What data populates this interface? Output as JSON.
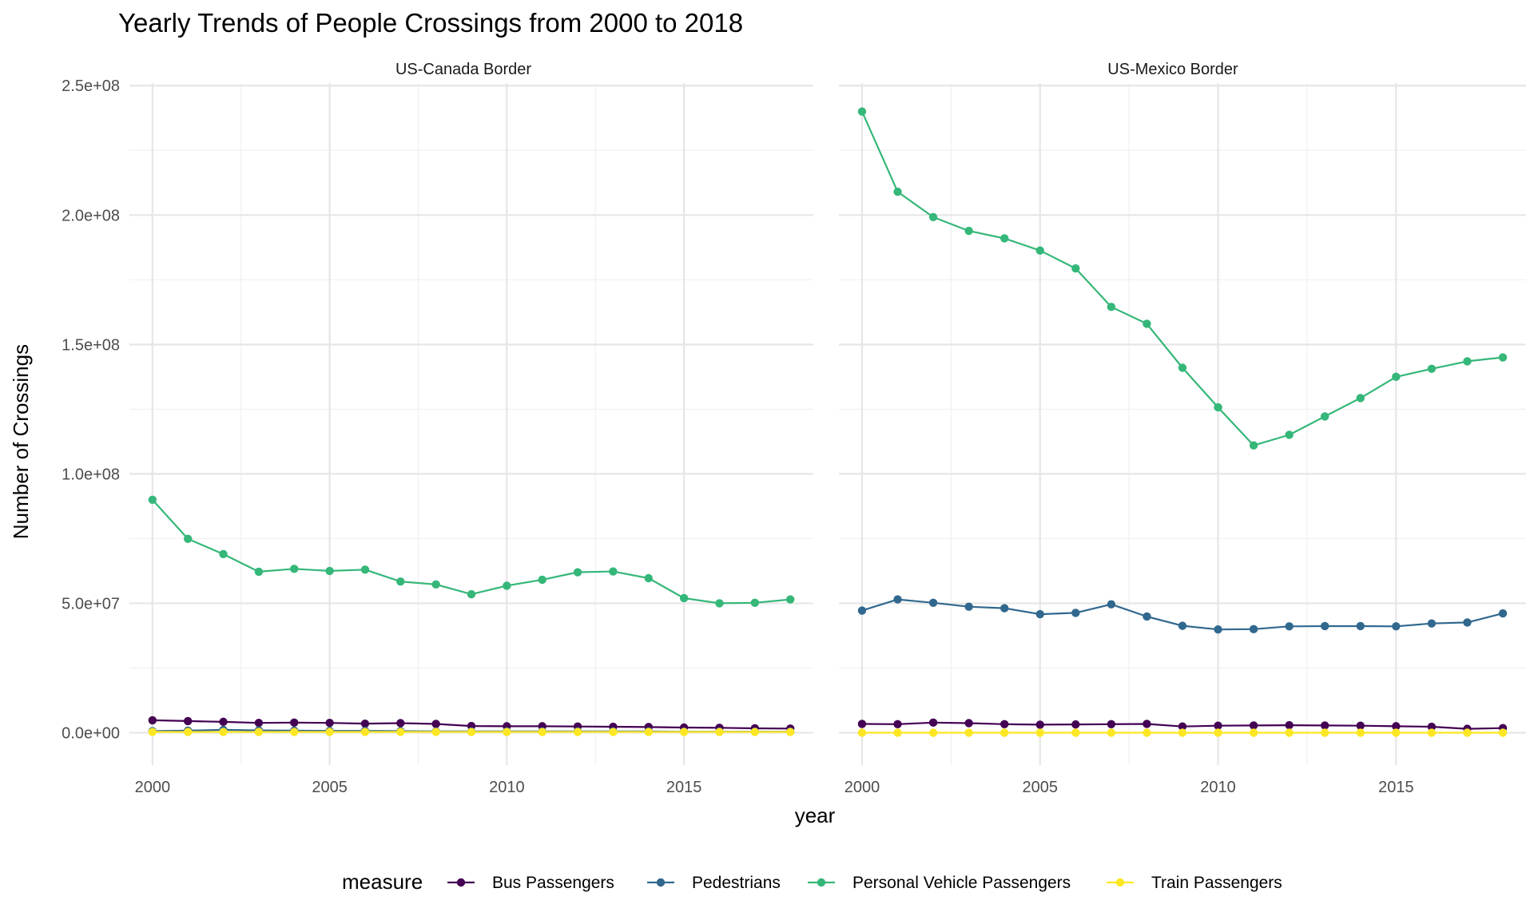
{
  "chart_data": {
    "type": "line",
    "title": "Yearly Trends of People Crossings from 2000 to 2018",
    "xlabel": "year",
    "ylabel": "Number of Crossings",
    "xlim": [
      1999.35,
      2018.65
    ],
    "ylim": [
      -12500000,
      251000000
    ],
    "x_ticks": [
      2000,
      2005,
      2010,
      2015
    ],
    "x_tick_labels": [
      "2000",
      "2005",
      "2010",
      "2015"
    ],
    "y_ticks": [
      0,
      50000000,
      100000000,
      150000000,
      200000000,
      250000000
    ],
    "y_tick_labels": [
      "0.0e+00",
      "5.0e+07",
      "1.0e+08",
      "1.5e+08",
      "2.0e+08",
      "2.5e+08"
    ],
    "grid": true,
    "legend_position": "bottom",
    "legend_title": "measure",
    "facets": [
      "US-Canada Border",
      "US-Mexico Border"
    ],
    "x": [
      2000,
      2001,
      2002,
      2003,
      2004,
      2005,
      2006,
      2007,
      2008,
      2009,
      2010,
      2011,
      2012,
      2013,
      2014,
      2015,
      2016,
      2017,
      2018
    ],
    "series": [
      {
        "name": "Bus Passengers",
        "color": "#440154",
        "values": {
          "US-Canada Border": [
            4800000,
            4500000,
            4200000,
            3800000,
            3900000,
            3800000,
            3500000,
            3700000,
            3400000,
            2600000,
            2500000,
            2500000,
            2400000,
            2300000,
            2200000,
            2000000,
            1900000,
            1700000,
            1600000
          ],
          "US-Mexico Border": [
            3400000,
            3300000,
            3900000,
            3700000,
            3300000,
            3100000,
            3200000,
            3300000,
            3400000,
            2400000,
            2700000,
            2800000,
            2900000,
            2800000,
            2700000,
            2500000,
            2300000,
            1500000,
            1800000
          ]
        }
      },
      {
        "name": "Pedestrians",
        "color": "#31688e",
        "values": {
          "US-Canada Border": [
            600000,
            800000,
            1100000,
            900000,
            800000,
            700000,
            700000,
            600000,
            500000,
            500000,
            500000,
            500000,
            500000,
            500000,
            500000,
            400000,
            400000,
            400000,
            400000
          ],
          "US-Mexico Border": [
            47200000,
            51500000,
            50200000,
            48700000,
            48100000,
            45800000,
            46300000,
            49600000,
            44900000,
            41300000,
            39900000,
            40000000,
            41100000,
            41200000,
            41200000,
            41100000,
            42200000,
            42600000,
            46100000
          ]
        }
      },
      {
        "name": "Personal Vehicle Passengers",
        "color": "#35b779",
        "values": {
          "US-Canada Border": [
            90000000,
            74900000,
            69000000,
            62200000,
            63300000,
            62500000,
            63000000,
            58400000,
            57300000,
            53500000,
            56800000,
            59100000,
            62000000,
            62300000,
            59700000,
            52000000,
            50000000,
            50200000,
            51500000
          ],
          "US-Mexico Border": [
            240000000,
            209000000,
            199200000,
            193900000,
            191000000,
            186300000,
            179400000,
            164500000,
            158000000,
            141000000,
            125700000,
            111000000,
            115100000,
            122200000,
            129300000,
            137500000,
            140600000,
            143500000,
            145000000
          ]
        }
      },
      {
        "name": "Train Passengers",
        "color": "#fde725",
        "values": {
          "US-Canada Border": [
            300000,
            300000,
            300000,
            300000,
            300000,
            300000,
            300000,
            300000,
            300000,
            300000,
            300000,
            300000,
            300000,
            300000,
            300000,
            300000,
            300000,
            300000,
            300000
          ],
          "US-Mexico Border": [
            0,
            0,
            0,
            0,
            0,
            0,
            0,
            0,
            0,
            0,
            0,
            0,
            0,
            0,
            0,
            0,
            0,
            0,
            0
          ]
        }
      }
    ]
  }
}
